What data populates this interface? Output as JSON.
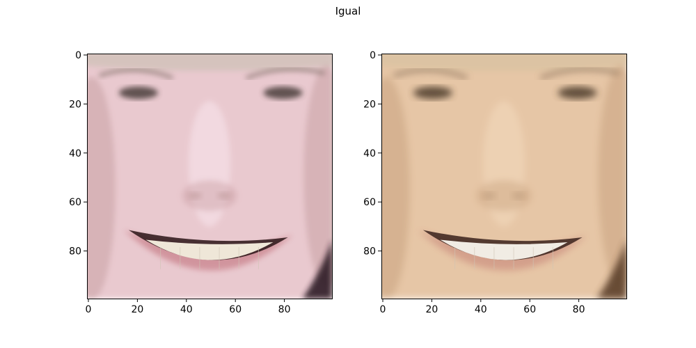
{
  "figure": {
    "title": "Igual",
    "panels": [
      {
        "name": "left",
        "image_description": "close-up face crop, smiling, pale pinkish skin tone",
        "xticks": [
          "0",
          "20",
          "40",
          "60",
          "80"
        ],
        "yticks": [
          "0",
          "20",
          "40",
          "60",
          "80"
        ],
        "palette": {
          "skin": "#e9c9cf",
          "skin_shade": "#c9a0a4",
          "skin_dark": "#a77f7c",
          "hair": "#cfc2b8",
          "brow": "#7a6a62",
          "eye": "#4a3d3a",
          "nose_light": "#f4dde4",
          "lip": "#cf8f98",
          "teeth": "#efe7d8",
          "mouth": "#2a1416",
          "corner_dark": "#2d1d27"
        }
      },
      {
        "name": "right",
        "image_description": "close-up face crop, smiling, warm beige skin tone, blurrier",
        "xticks": [
          "0",
          "20",
          "40",
          "60",
          "80"
        ],
        "yticks": [
          "0",
          "20",
          "40",
          "60",
          "80"
        ],
        "palette": {
          "skin": "#e6c6a6",
          "skin_shade": "#c9a27f",
          "skin_dark": "#9c7a5c",
          "hair": "#d9c2a2",
          "brow": "#7d6550",
          "eye": "#4b3a2a",
          "nose_light": "#efd3b6",
          "lip": "#d29b88",
          "teeth": "#f1ece4",
          "mouth": "#3a221c",
          "corner_dark": "#5b3f2a"
        }
      }
    ]
  }
}
